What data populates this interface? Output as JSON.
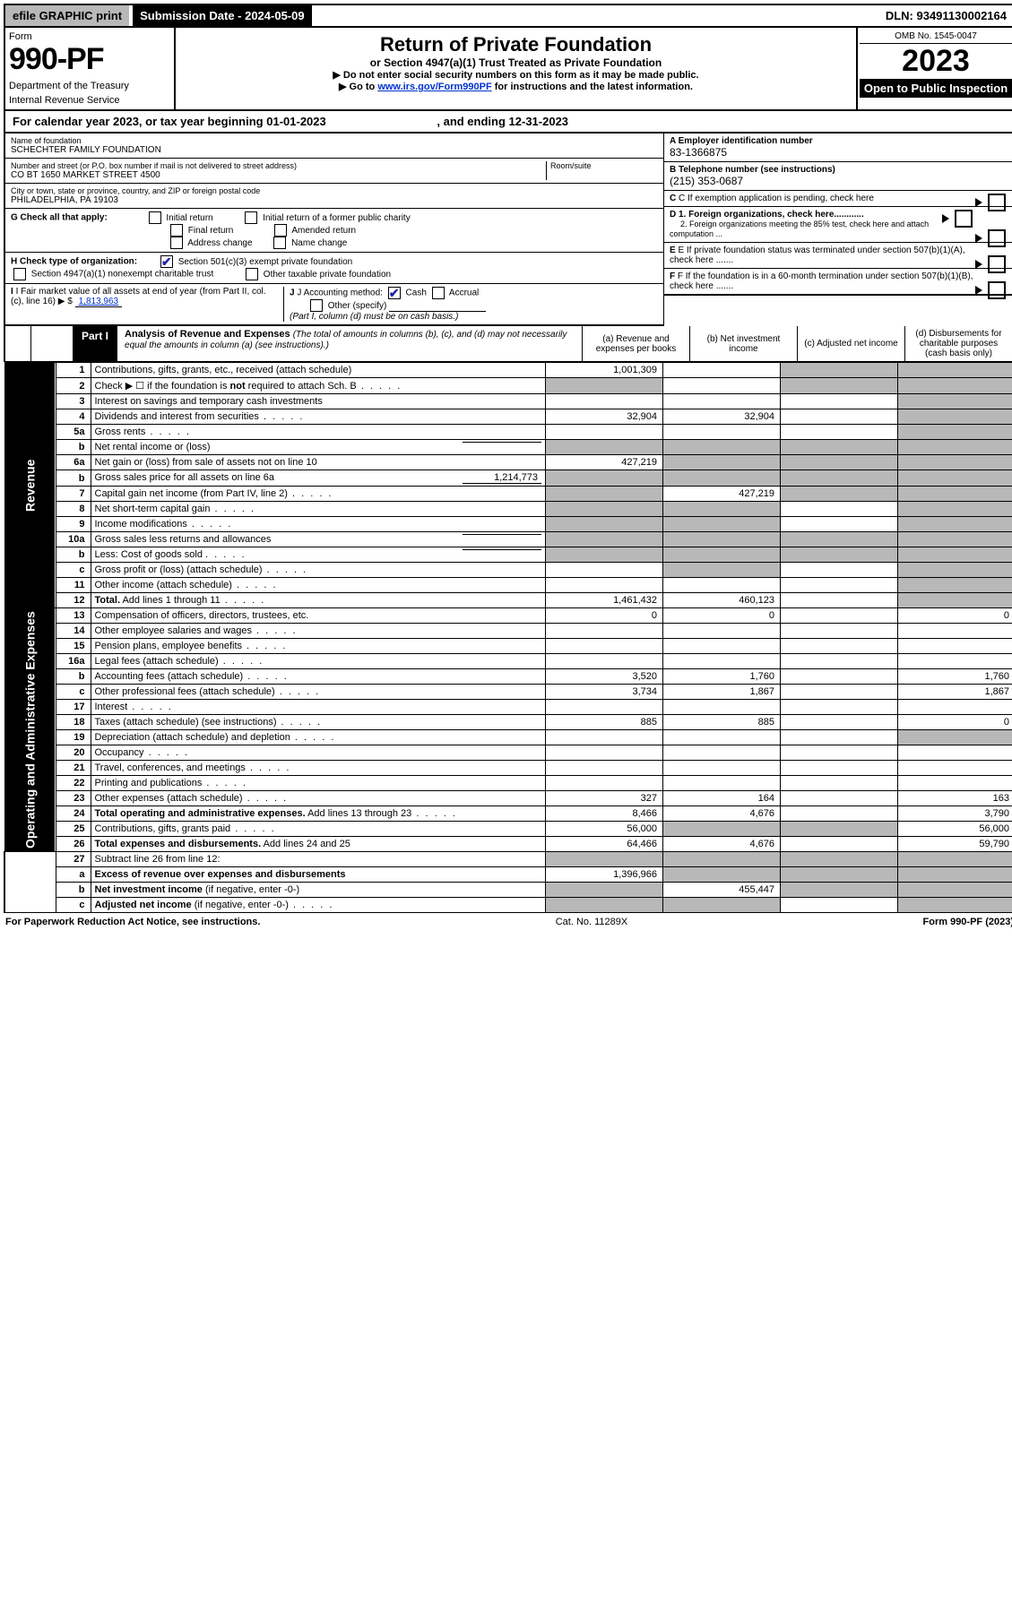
{
  "topbar": {
    "efile": "efile GRAPHIC print",
    "subdate_label": "Submission Date - 2024-05-09",
    "dln": "DLN: 93491130002164"
  },
  "header": {
    "form_word": "Form",
    "form_num": "990-PF",
    "dept": "Department of the Treasury",
    "irs": "Internal Revenue Service",
    "title": "Return of Private Foundation",
    "subtitle": "or Section 4947(a)(1) Trust Treated as Private Foundation",
    "note1": "▶ Do not enter social security numbers on this form as it may be made public.",
    "note2_pre": "▶ Go to ",
    "note2_link": "www.irs.gov/Form990PF",
    "note2_post": " for instructions and the latest information.",
    "omb": "OMB No. 1545-0047",
    "year": "2023",
    "open": "Open to Public Inspection"
  },
  "cal": {
    "text_pre": "For calendar year 2023, or tax year beginning ",
    "begin": "01-01-2023",
    "text_mid": ", and ending ",
    "end": "12-31-2023"
  },
  "id": {
    "name_label": "Name of foundation",
    "name": "SCHECHTER FAMILY FOUNDATION",
    "addr_label": "Number and street (or P.O. box number if mail is not delivered to street address)",
    "addr": "CO BT 1650 MARKET STREET 4500",
    "room_label": "Room/suite",
    "city_label": "City or town, state or province, country, and ZIP or foreign postal code",
    "city": "PHILADELPHIA, PA  19103",
    "ein_label": "A Employer identification number",
    "ein": "83-1366875",
    "phone_label": "B Telephone number (see instructions)",
    "phone": "(215) 353-0687",
    "c_label": "C If exemption application is pending, check here",
    "d1": "D 1. Foreign organizations, check here............",
    "d2": "2. Foreign organizations meeting the 85% test, check here and attach computation ...",
    "e": "E  If private foundation status was terminated under section 507(b)(1)(A), check here .......",
    "f": "F  If the foundation is in a 60-month termination under section 507(b)(1)(B), check here .......",
    "g_label": "G Check all that apply:",
    "g_opts": [
      "Initial return",
      "Initial return of a former public charity",
      "Final return",
      "Amended return",
      "Address change",
      "Name change"
    ],
    "h_label": "H Check type of organization:",
    "h1": "Section 501(c)(3) exempt private foundation",
    "h2": "Section 4947(a)(1) nonexempt charitable trust",
    "h3": "Other taxable private foundation",
    "i_label": "I Fair market value of all assets at end of year (from Part II, col. (c), line 16) ▶ $",
    "i_val": "1,813,963",
    "j_label": "J Accounting method:",
    "j_opts": [
      "Cash",
      "Accrual",
      "Other (specify)"
    ],
    "j_note": "(Part I, column (d) must be on cash basis.)"
  },
  "part1": {
    "label": "Part I",
    "title": "Analysis of Revenue and Expenses",
    "title_note": "(The total of amounts in columns (b), (c), and (d) may not necessarily equal the amounts in column (a) (see instructions).)",
    "col_a": "(a) Revenue and expenses per books",
    "col_b": "(b) Net investment income",
    "col_c": "(c) Adjusted net income",
    "col_d": "(d) Disbursements for charitable purposes (cash basis only)"
  },
  "side": {
    "rev": "Revenue",
    "exp": "Operating and Administrative Expenses"
  },
  "rows": [
    {
      "n": "1",
      "lbl": "Contributions, gifts, grants, etc., received (attach schedule)",
      "a": "1,001,309",
      "cg": true,
      "dg": true
    },
    {
      "n": "2",
      "lbl": "Check ▶ ☐ if the foundation is <b>not</b> required to attach Sch. B",
      "dots": true,
      "ag": true,
      "cg": true,
      "dg": true
    },
    {
      "n": "3",
      "lbl": "Interest on savings and temporary cash investments",
      "a": "",
      "b": "",
      "c": "",
      "dg": true
    },
    {
      "n": "4",
      "lbl": "Dividends and interest from securities",
      "dots": true,
      "a": "32,904",
      "b": "32,904",
      "c": "",
      "dg": true
    },
    {
      "n": "5a",
      "lbl": "Gross rents",
      "dots": true,
      "a": "",
      "b": "",
      "c": "",
      "dg": true
    },
    {
      "n": "b",
      "lbl": "Net rental income or (loss)",
      "inline": "",
      "ag": true,
      "bg": true,
      "cg": true,
      "dg": true
    },
    {
      "n": "6a",
      "lbl": "Net gain or (loss) from sale of assets not on line 10",
      "a": "427,219",
      "bg": true,
      "cg": true,
      "dg": true
    },
    {
      "n": "b",
      "lbl": "Gross sales price for all assets on line 6a",
      "inline": "1,214,773",
      "ag": true,
      "bg": true,
      "cg": true,
      "dg": true
    },
    {
      "n": "7",
      "lbl": "Capital gain net income (from Part IV, line 2)",
      "dots": true,
      "ag": true,
      "b": "427,219",
      "cg": true,
      "dg": true
    },
    {
      "n": "8",
      "lbl": "Net short-term capital gain",
      "dots": true,
      "ag": true,
      "bg": true,
      "c": "",
      "dg": true
    },
    {
      "n": "9",
      "lbl": "Income modifications",
      "dots": true,
      "ag": true,
      "bg": true,
      "c": "",
      "dg": true
    },
    {
      "n": "10a",
      "lbl": "Gross sales less returns and allowances",
      "inline": "",
      "ag": true,
      "bg": true,
      "cg": true,
      "dg": true
    },
    {
      "n": "b",
      "lbl": "Less: Cost of goods sold",
      "dots": true,
      "inline": "",
      "ag": true,
      "bg": true,
      "cg": true,
      "dg": true
    },
    {
      "n": "c",
      "lbl": "Gross profit or (loss) (attach schedule)",
      "dots": true,
      "a": "",
      "bg": true,
      "c": "",
      "dg": true
    },
    {
      "n": "11",
      "lbl": "Other income (attach schedule)",
      "dots": true,
      "a": "",
      "b": "",
      "c": "",
      "dg": true
    },
    {
      "n": "12",
      "lbl": "<b>Total.</b> Add lines 1 through 11",
      "dots": true,
      "a": "1,461,432",
      "b": "460,123",
      "c": "",
      "dg": true
    }
  ],
  "exp_rows": [
    {
      "n": "13",
      "lbl": "Compensation of officers, directors, trustees, etc.",
      "a": "0",
      "b": "0",
      "c": "",
      "d": "0"
    },
    {
      "n": "14",
      "lbl": "Other employee salaries and wages",
      "dots": true,
      "a": "",
      "b": "",
      "c": "",
      "d": ""
    },
    {
      "n": "15",
      "lbl": "Pension plans, employee benefits",
      "dots": true,
      "a": "",
      "b": "",
      "c": "",
      "d": ""
    },
    {
      "n": "16a",
      "lbl": "Legal fees (attach schedule)",
      "dots": true,
      "a": "",
      "b": "",
      "c": "",
      "d": ""
    },
    {
      "n": "b",
      "lbl": "Accounting fees (attach schedule)",
      "dots": true,
      "a": "3,520",
      "b": "1,760",
      "c": "",
      "d": "1,760"
    },
    {
      "n": "c",
      "lbl": "Other professional fees (attach schedule)",
      "dots": true,
      "a": "3,734",
      "b": "1,867",
      "c": "",
      "d": "1,867"
    },
    {
      "n": "17",
      "lbl": "Interest",
      "dots": true,
      "a": "",
      "b": "",
      "c": "",
      "d": ""
    },
    {
      "n": "18",
      "lbl": "Taxes (attach schedule) (see instructions)",
      "dots": true,
      "a": "885",
      "b": "885",
      "c": "",
      "d": "0"
    },
    {
      "n": "19",
      "lbl": "Depreciation (attach schedule) and depletion",
      "dots": true,
      "a": "",
      "b": "",
      "c": "",
      "dg": true
    },
    {
      "n": "20",
      "lbl": "Occupancy",
      "dots": true,
      "a": "",
      "b": "",
      "c": "",
      "d": ""
    },
    {
      "n": "21",
      "lbl": "Travel, conferences, and meetings",
      "dots": true,
      "a": "",
      "b": "",
      "c": "",
      "d": ""
    },
    {
      "n": "22",
      "lbl": "Printing and publications",
      "dots": true,
      "a": "",
      "b": "",
      "c": "",
      "d": ""
    },
    {
      "n": "23",
      "lbl": "Other expenses (attach schedule)",
      "dots": true,
      "a": "327",
      "b": "164",
      "c": "",
      "d": "163"
    },
    {
      "n": "24",
      "lbl": "<b>Total operating and administrative expenses.</b> Add lines 13 through 23",
      "dots": true,
      "a": "8,466",
      "b": "4,676",
      "c": "",
      "d": "3,790"
    },
    {
      "n": "25",
      "lbl": "Contributions, gifts, grants paid",
      "dots": true,
      "a": "56,000",
      "bg": true,
      "cg": true,
      "d": "56,000"
    },
    {
      "n": "26",
      "lbl": "<b>Total expenses and disbursements.</b> Add lines 24 and 25",
      "a": "64,466",
      "b": "4,676",
      "c": "",
      "d": "59,790"
    }
  ],
  "bottom_rows": [
    {
      "n": "27",
      "lbl": "Subtract line 26 from line 12:",
      "ag": true,
      "bg": true,
      "cg": true,
      "dg": true
    },
    {
      "n": "a",
      "lbl": "<b>Excess of revenue over expenses and disbursements</b>",
      "a": "1,396,966",
      "bg": true,
      "cg": true,
      "dg": true
    },
    {
      "n": "b",
      "lbl": "<b>Net investment income</b> (if negative, enter -0-)",
      "ag": true,
      "b": "455,447",
      "cg": true,
      "dg": true
    },
    {
      "n": "c",
      "lbl": "<b>Adjusted net income</b> (if negative, enter -0-)",
      "dots": true,
      "ag": true,
      "bg": true,
      "c": "",
      "dg": true
    }
  ],
  "footer": {
    "left": "For Paperwork Reduction Act Notice, see instructions.",
    "mid": "Cat. No. 11289X",
    "right": "Form 990-PF (2023)"
  },
  "colors": {
    "grey": "#b8b8b8",
    "link": "#0033cc",
    "check": "#2244aa"
  }
}
